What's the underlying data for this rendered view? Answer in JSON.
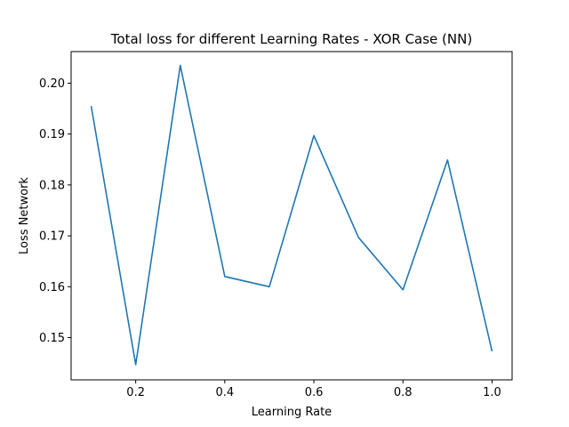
{
  "chart_data": {
    "type": "line",
    "title": "Total loss for different Learning Rates - XOR Case (NN)",
    "xlabel": "Learning Rate",
    "ylabel": "Loss Network",
    "xlim": [
      0.055,
      1.045
    ],
    "ylim": [
      0.1417,
      0.2062
    ],
    "x_ticks": [
      0.2,
      0.4,
      0.6,
      0.8,
      1.0
    ],
    "x_tick_labels": [
      "0.2",
      "0.4",
      "0.6",
      "0.8",
      "1.0"
    ],
    "y_ticks": [
      0.15,
      0.16,
      0.17,
      0.18,
      0.19,
      0.2
    ],
    "y_tick_labels": [
      "0.15",
      "0.16",
      "0.17",
      "0.18",
      "0.19",
      "0.20"
    ],
    "grid": false,
    "series": [
      {
        "color": "#1f77b4",
        "x": [
          0.1,
          0.2,
          0.3,
          0.4,
          0.5,
          0.6,
          0.7,
          0.8,
          0.9,
          1.0
        ],
        "y": [
          0.1955,
          0.1447,
          0.2035,
          0.162,
          0.16,
          0.1897,
          0.1697,
          0.1594,
          0.1849,
          0.1473
        ]
      }
    ]
  }
}
